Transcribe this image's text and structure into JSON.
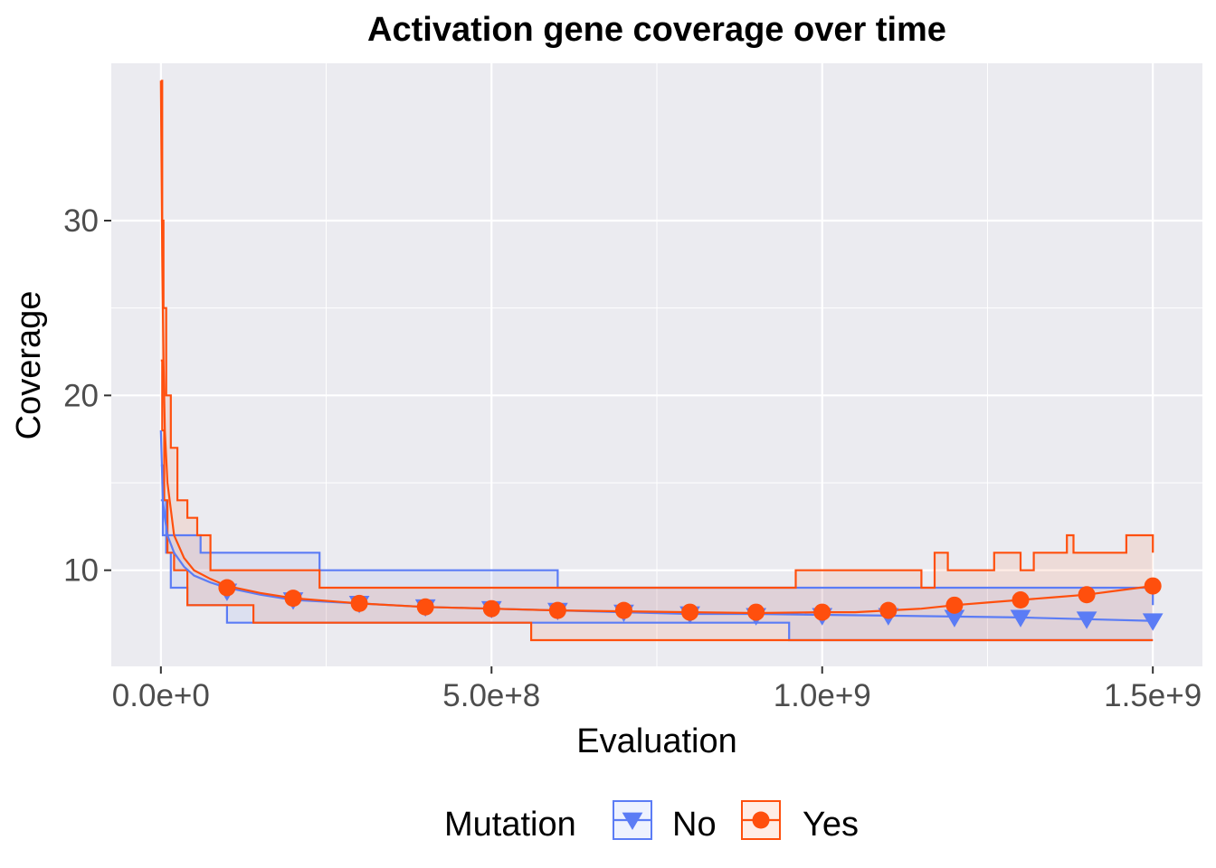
{
  "chart_data": {
    "type": "line",
    "title": "Activation gene coverage over time",
    "xlabel": "Evaluation",
    "ylabel": "Coverage",
    "xlim": [
      -75000000,
      1575000000
    ],
    "ylim": [
      4.5,
      39
    ],
    "x_ticks": [
      0,
      500000000,
      1000000000,
      1500000000
    ],
    "x_tick_labels": [
      "0.0e+0",
      "5.0e+8",
      "1.0e+9",
      "1.5e+9"
    ],
    "y_ticks": [
      10,
      20,
      30
    ],
    "y_tick_labels": [
      "10",
      "20",
      "30"
    ],
    "grid": true,
    "legend": {
      "title": "Mutation",
      "position": "bottom",
      "entries": [
        "No",
        "Yes"
      ]
    },
    "series": [
      {
        "name": "No",
        "color": "#5b7cf5",
        "marker": "triangle-down",
        "points": {
          "x": [
            100000000,
            200000000,
            300000000,
            400000000,
            500000000,
            600000000,
            700000000,
            800000000,
            900000000,
            1000000000,
            1100000000,
            1200000000,
            1300000000,
            1400000000,
            1500000000
          ],
          "y": [
            8.8,
            8.3,
            8.1,
            7.9,
            7.8,
            7.7,
            7.6,
            7.5,
            7.4,
            7.4,
            7.4,
            7.3,
            7.3,
            7.2,
            7.1
          ]
        },
        "median": {
          "x": [
            0,
            3000000,
            6000000,
            10000000,
            20000000,
            35000000,
            50000000,
            75000000,
            100000000,
            150000000,
            200000000,
            300000000,
            400000000,
            500000000,
            600000000,
            700000000,
            800000000,
            900000000,
            1000000000,
            1100000000,
            1200000000,
            1300000000,
            1400000000,
            1500000000
          ],
          "y": [
            18,
            14,
            13,
            12,
            11,
            10.2,
            9.7,
            9.3,
            9.0,
            8.6,
            8.3,
            8.1,
            7.9,
            7.8,
            7.7,
            7.6,
            7.5,
            7.5,
            7.45,
            7.4,
            7.35,
            7.3,
            7.2,
            7.1
          ]
        },
        "upper": {
          "x": [
            0,
            3000000,
            8000000,
            60000000,
            240000000,
            600000000,
            1500000000
          ],
          "y": [
            16,
            14,
            12,
            11,
            10,
            9,
            8
          ]
        },
        "lower": {
          "x": [
            0,
            3000000,
            8000000,
            15000000,
            40000000,
            100000000,
            950000000,
            1500000000
          ],
          "y": [
            14,
            12,
            11,
            9,
            8,
            7,
            6,
            6
          ]
        }
      },
      {
        "name": "Yes",
        "color": "#ff4f0d",
        "marker": "circle",
        "points": {
          "x": [
            100000000,
            200000000,
            300000000,
            400000000,
            500000000,
            600000000,
            700000000,
            800000000,
            900000000,
            1000000000,
            1100000000,
            1200000000,
            1300000000,
            1400000000,
            1500000000
          ],
          "y": [
            9.0,
            8.4,
            8.1,
            7.9,
            7.8,
            7.7,
            7.7,
            7.6,
            7.6,
            7.6,
            7.7,
            8.0,
            8.3,
            8.6,
            9.1
          ]
        },
        "median": {
          "x": [
            0,
            2000000,
            4000000,
            6000000,
            10000000,
            20000000,
            35000000,
            50000000,
            75000000,
            100000000,
            150000000,
            200000000,
            300000000,
            400000000,
            500000000,
            600000000,
            700000000,
            800000000,
            900000000,
            1000000000,
            1050000000,
            1100000000,
            1150000000,
            1200000000,
            1250000000,
            1300000000,
            1350000000,
            1400000000,
            1450000000,
            1500000000
          ],
          "y": [
            38,
            28,
            22,
            18,
            15,
            12,
            10.7,
            10.0,
            9.5,
            9.1,
            8.7,
            8.4,
            8.1,
            7.9,
            7.8,
            7.7,
            7.65,
            7.6,
            7.55,
            7.6,
            7.6,
            7.7,
            7.8,
            8.0,
            8.15,
            8.3,
            8.45,
            8.6,
            8.85,
            9.1
          ]
        },
        "upper": {
          "x": [
            0,
            2000000,
            4000000,
            8000000,
            15000000,
            25000000,
            40000000,
            55000000,
            75000000,
            240000000,
            920000000,
            960000000,
            1150000000,
            1170000000,
            1190000000,
            1260000000,
            1300000000,
            1320000000,
            1370000000,
            1380000000,
            1400000000,
            1450000000,
            1460000000,
            1500000000
          ],
          "y": [
            38,
            30,
            25,
            20,
            17,
            14,
            13,
            12,
            10,
            9,
            9,
            10,
            9,
            11,
            10,
            11,
            10,
            11,
            12,
            11,
            11,
            11,
            12,
            11
          ]
        },
        "lower": {
          "x": [
            0,
            2000000,
            5000000,
            10000000,
            20000000,
            40000000,
            140000000,
            560000000,
            1500000000
          ],
          "y": [
            22,
            18,
            14,
            11,
            10,
            8,
            7,
            6,
            6
          ]
        }
      }
    ]
  }
}
